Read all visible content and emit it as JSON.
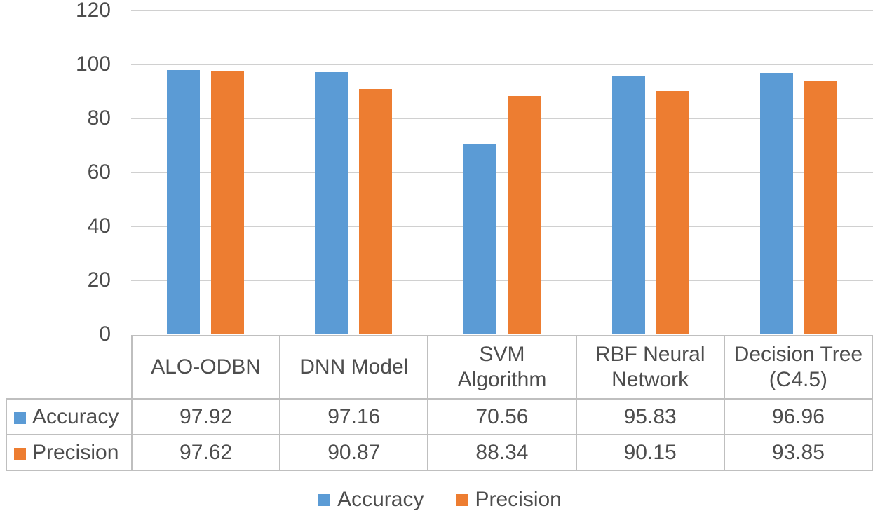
{
  "chart_data": {
    "type": "bar",
    "title": "",
    "xlabel": "",
    "ylabel": "",
    "categories": [
      "ALO-ODBN",
      "DNN Model",
      "SVM Algorithm",
      "RBF Neural Network",
      "Decision Tree (C4.5)"
    ],
    "series": [
      {
        "name": "Accuracy",
        "color": "#5B9BD5",
        "values": [
          97.92,
          97.16,
          70.56,
          95.83,
          96.96
        ]
      },
      {
        "name": "Precision",
        "color": "#ED7D31",
        "values": [
          97.62,
          90.87,
          88.34,
          90.15,
          93.85
        ]
      }
    ],
    "y_axis": {
      "min": 0,
      "max": 120,
      "tick_step": 20,
      "ticks": [
        0,
        20,
        40,
        60,
        80,
        100,
        120
      ]
    },
    "grid": true,
    "legend_position": "bottom",
    "data_table": {
      "column_headers": [
        "ALO-ODBN",
        "DNN Model",
        "SVM\nAlgorithm",
        "RBF Neural\nNetwork",
        "Decision Tree\n(C4.5)"
      ],
      "rows": [
        {
          "label": "Accuracy",
          "swatch_color": "#5B9BD5",
          "values": [
            "97.92",
            "97.16",
            "70.56",
            "95.83",
            "96.96"
          ]
        },
        {
          "label": "Precision",
          "swatch_color": "#ED7D31",
          "values": [
            "97.62",
            "90.87",
            "88.34",
            "90.15",
            "93.85"
          ]
        }
      ]
    }
  },
  "legend": {
    "items": [
      {
        "label": "Accuracy",
        "color": "#5B9BD5"
      },
      {
        "label": "Precision",
        "color": "#ED7D31"
      }
    ]
  },
  "colors": {
    "grid_line": "#D0D0D0",
    "table_border": "#BFBFBF",
    "axis_text": "#4D4D4D",
    "accuracy_blue": "#5B9BD5",
    "precision_orange": "#ED7D31"
  }
}
